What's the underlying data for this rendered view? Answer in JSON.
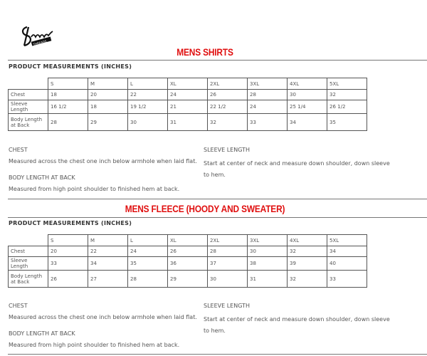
{
  "logo": {
    "text": "Sneaker Threads"
  },
  "sections": [
    {
      "title": "MENS SHIRTS",
      "heading": "PRODUCT MEASUREMENTS (INCHES)",
      "sizes": [
        "S",
        "M",
        "L",
        "XL",
        "2XL",
        "3XL",
        "4XL",
        "5XL"
      ],
      "rows": [
        {
          "label": "Chest",
          "values": [
            "18",
            "20",
            "22",
            "24",
            "26",
            "28",
            "30",
            "32"
          ]
        },
        {
          "label": "Sleeve Length",
          "values": [
            "16 1/2",
            "18",
            "19 1/2",
            "21",
            "22 1/2",
            "24",
            "25 1/4",
            "26 1/2"
          ]
        },
        {
          "label": "Body Length at Back",
          "values": [
            "28",
            "29",
            "30",
            "31",
            "32",
            "33",
            "34",
            "35"
          ]
        }
      ],
      "notes": {
        "chest_title": "CHEST",
        "chest_text": "Measured across the chest one inch below armhole when laid flat.",
        "body_title": "BODY LENGTH AT BACK",
        "body_text": "Measured from high point shoulder to finished hem at back.",
        "sleeve_title": "SLEEVE LENGTH",
        "sleeve_text": "Start at center of neck and measure down shoulder, down sleeve to hem."
      }
    },
    {
      "title": "MENS FLEECE (HOODY AND SWEATER)",
      "heading": "PRODUCT MEASUREMENTS (INCHES)",
      "sizes": [
        "S",
        "M",
        "L",
        "XL",
        "2XL",
        "3XL",
        "4XL",
        "5XL"
      ],
      "rows": [
        {
          "label": "Chest",
          "values": [
            "20",
            "22",
            "24",
            "26",
            "28",
            "30",
            "32",
            "34"
          ]
        },
        {
          "label": "Sleeve Length",
          "values": [
            "33",
            "34",
            "35",
            "36",
            "37",
            "38",
            "39",
            "40"
          ]
        },
        {
          "label": "Body Length at Back",
          "values": [
            "26",
            "27",
            "28",
            "29",
            "30",
            "31",
            "32",
            "33"
          ]
        }
      ],
      "notes": {
        "chest_title": "CHEST",
        "chest_text": "Measured across the chest one inch below armhole when laid flat.",
        "body_title": "BODY LENGTH AT BACK",
        "body_text": "Measured from high point shoulder to finished hem at back.",
        "sleeve_title": "SLEEVE LENGTH",
        "sleeve_text": "Start at center of neck and measure down shoulder, down sleeve to hem."
      }
    }
  ]
}
